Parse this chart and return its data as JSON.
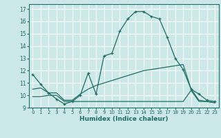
{
  "xlabel": "Humidex (Indice chaleur)",
  "bg_color": "#cce8e8",
  "grid_color": "#ffffff",
  "line_color": "#1e6e64",
  "xlim": [
    -0.5,
    23.5
  ],
  "ylim": [
    9,
    17.4
  ],
  "yticks": [
    9,
    10,
    11,
    12,
    13,
    14,
    15,
    16,
    17
  ],
  "xticks": [
    0,
    1,
    2,
    3,
    4,
    5,
    6,
    7,
    8,
    9,
    10,
    11,
    12,
    13,
    14,
    15,
    16,
    17,
    18,
    19,
    20,
    21,
    22,
    23
  ],
  "line1_x": [
    0,
    1,
    2,
    3,
    4,
    5,
    6,
    7,
    8,
    9,
    10,
    11,
    12,
    13,
    14,
    15,
    16,
    17,
    18,
    19,
    20,
    21,
    22,
    23
  ],
  "line1_y": [
    11.7,
    10.9,
    10.2,
    9.7,
    9.3,
    9.5,
    10.0,
    11.8,
    10.1,
    13.2,
    13.4,
    15.2,
    16.2,
    16.8,
    16.8,
    16.4,
    16.2,
    14.7,
    13.0,
    12.1,
    10.5,
    10.1,
    9.6,
    9.5
  ],
  "line2_x": [
    0,
    1,
    2,
    3,
    4,
    5,
    6,
    7,
    8,
    9,
    10,
    11,
    12,
    13,
    14,
    15,
    16,
    17,
    18,
    19,
    20,
    21,
    22,
    23
  ],
  "line2_y": [
    10.5,
    10.6,
    10.2,
    10.2,
    9.6,
    9.6,
    10.1,
    10.5,
    10.8,
    11.0,
    11.2,
    11.4,
    11.6,
    11.8,
    12.0,
    12.1,
    12.2,
    12.3,
    12.4,
    12.5,
    10.5,
    9.6,
    9.5,
    9.4
  ],
  "line3_x": [
    0,
    1,
    2,
    3,
    4,
    5,
    6,
    7,
    8,
    9,
    10,
    11,
    12,
    13,
    14,
    15,
    16,
    17,
    18,
    19,
    20,
    21,
    22,
    23
  ],
  "line3_y": [
    9.9,
    9.9,
    10.0,
    10.0,
    9.5,
    9.5,
    9.5,
    9.5,
    9.5,
    9.5,
    9.5,
    9.5,
    9.5,
    9.5,
    9.5,
    9.5,
    9.5,
    9.5,
    9.5,
    9.5,
    10.4,
    9.5,
    9.5,
    9.4
  ]
}
